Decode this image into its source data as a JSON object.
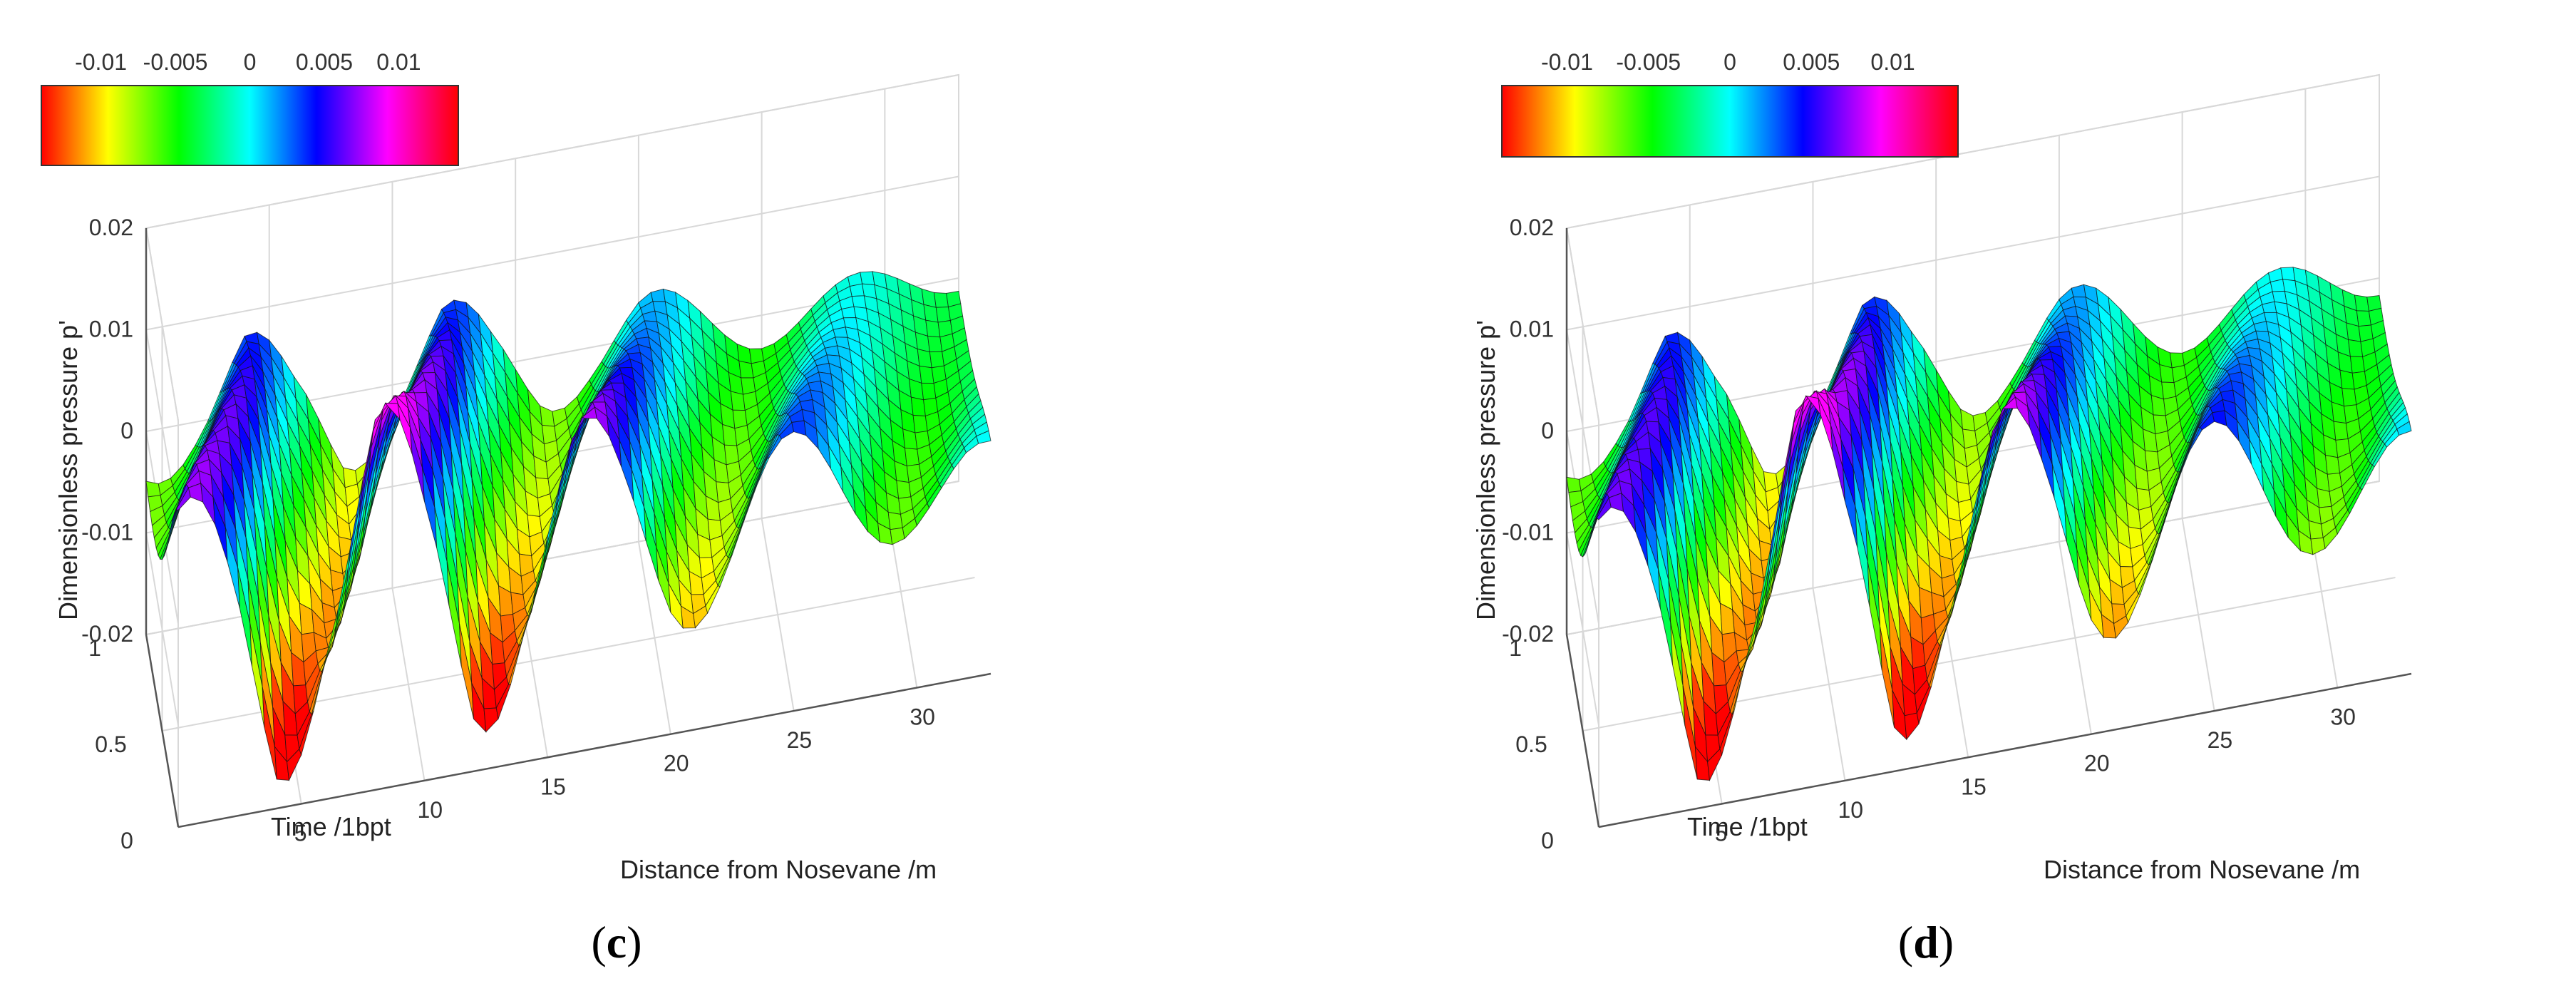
{
  "figure": {
    "panels": [
      {
        "id": "c",
        "label_open": "(",
        "label_letter": "c",
        "label_close": ")"
      },
      {
        "id": "d",
        "label_open": "(",
        "label_letter": "d",
        "label_close": ")"
      }
    ]
  },
  "chart_data": [
    {
      "type": "surface",
      "panel": "c",
      "xlabel": "Distance from Nosevane /m",
      "ylabel": "Time /1bpt",
      "zlabel": "Dimensionless pressure p'",
      "x_ticks": [
        "5",
        "10",
        "15",
        "20",
        "25",
        "30"
      ],
      "y_ticks": [
        "0",
        "0.5",
        "1"
      ],
      "z_ticks": [
        "-0.02",
        "-0.01",
        "0",
        "0.01",
        "0.02"
      ],
      "xlim": [
        0,
        33
      ],
      "ylim": [
        0,
        1
      ],
      "zlim": [
        -0.02,
        0.02
      ],
      "colorbar": {
        "ticks": [
          "-0.01",
          "-0.005",
          "0",
          "0.005",
          "0.01"
        ],
        "range": [
          -0.014,
          0.014
        ],
        "colormap": "hsv",
        "location": "top-left"
      },
      "grid": true,
      "series": [
        {
          "x": [
            0,
            2,
            4,
            6,
            8,
            10,
            12,
            14,
            16,
            18,
            20,
            22,
            24,
            26,
            28,
            30,
            32,
            33
          ],
          "z_envelope": [
            0.012,
            0.013,
            -0.019,
            0.013,
            -0.019,
            0.014,
            -0.018,
            0.013,
            -0.014,
            0.011,
            -0.011,
            0.009,
            -0.008,
            0.007,
            -0.006,
            0.005,
            -0.004,
            -0.003
          ]
        }
      ]
    },
    {
      "type": "surface",
      "panel": "d",
      "xlabel": "Distance from Nosevane /m",
      "ylabel": "Time /1bpt",
      "zlabel": "Dimensionless pressure p'",
      "x_ticks": [
        "5",
        "10",
        "15",
        "20",
        "25",
        "30"
      ],
      "y_ticks": [
        "0",
        "0.5",
        "1"
      ],
      "z_ticks": [
        "-0.02",
        "-0.01",
        "0",
        "0.01",
        "0.02"
      ],
      "xlim": [
        0,
        33
      ],
      "ylim": [
        0,
        1
      ],
      "zlim": [
        -0.02,
        0.02
      ],
      "colorbar": {
        "ticks": [
          "-0.01",
          "-0.005",
          "0",
          "0.005",
          "0.01"
        ],
        "range": [
          -0.014,
          0.014
        ],
        "colormap": "hsv",
        "location": "top-left"
      },
      "grid": true,
      "series": [
        {
          "x": [
            0,
            2,
            4,
            6,
            8,
            10,
            12,
            14,
            16,
            18,
            20,
            22,
            24,
            26,
            28,
            30,
            32,
            33
          ],
          "z_envelope": [
            0.011,
            0.012,
            -0.019,
            0.013,
            -0.02,
            0.014,
            -0.019,
            0.013,
            -0.015,
            0.012,
            -0.012,
            0.01,
            -0.009,
            0.008,
            -0.007,
            0.006,
            -0.005,
            -0.004
          ]
        }
      ]
    }
  ]
}
